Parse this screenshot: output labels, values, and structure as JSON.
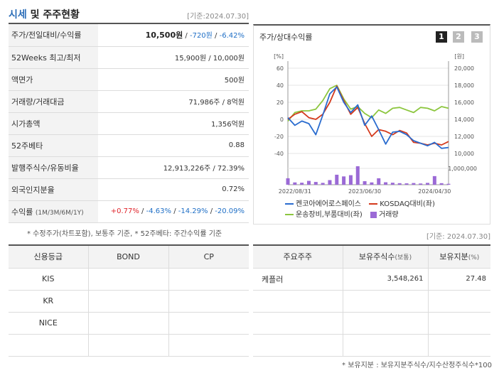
{
  "header": {
    "title_a": "시세",
    "title_b": " 및 주주현황",
    "date": "[기준:2024.07.30]"
  },
  "quote": {
    "rows": [
      {
        "label": "주가/전일대비/수익률"
      },
      {
        "label": "52Weeks 최고/최저",
        "value": "15,900원 / 10,000원"
      },
      {
        "label": "액면가",
        "value": "500원"
      },
      {
        "label": "거래량/거래대금",
        "value": "71,986주 / 8억원"
      },
      {
        "label": "시가총액",
        "value": "1,356억원"
      },
      {
        "label": "52주베타",
        "value": "0.88"
      },
      {
        "label": "발행주식수/유동비율",
        "value": "12,913,226주 / 72.39%"
      },
      {
        "label": "외국인지분율",
        "value": "0.72%"
      },
      {
        "label": "수익률",
        "sub": "(1M/3M/6M/1Y)"
      }
    ],
    "price": "10,500원",
    "sep": " / ",
    "change": "-720원",
    "change_pct": "-6.42%",
    "returns": {
      "m1": "+0.77%",
      "m3": "-4.63%",
      "m6": "-14.29%",
      "y1": "-20.09%",
      "sep": "/ "
    }
  },
  "notes": {
    "quote_note": "* 수정주가(차트포함), 보통주 기준, * 52주베타: 주간수익률 기준",
    "holder_date": "[기준: 2024.07.30]",
    "holder_note": "* 보유지분 : 보유지분주식수/지수산정주식수*100"
  },
  "chart": {
    "title": "주가/상대수익률",
    "pages": [
      "1",
      "2",
      "3"
    ],
    "left_unit": "[%]",
    "right_unit": "[원]",
    "left_ticks": [
      "60",
      "40",
      "20",
      "0",
      "-20",
      "-40"
    ],
    "right_ticks": [
      "20,000",
      "18,000",
      "16,000",
      "14,000",
      "12,000",
      "10,000"
    ],
    "vol_tick": "1,000,000",
    "x_labels": [
      "2022/08/31",
      "2023/06/30",
      "2024/04/30"
    ],
    "legend": {
      "s1": "켄코아에어로스페이스",
      "s2": "KOSDAQ대비(좌)",
      "s3": "운송장비,부품대비(좌)",
      "s4": "거래량"
    },
    "colors": {
      "s1": "#2a6ccf",
      "s2": "#d4391c",
      "s3": "#8cc63e",
      "vol": "#9b6ad6"
    }
  },
  "chart_data": {
    "type": "line",
    "x": [
      "2022/08",
      "2022/09",
      "2022/10",
      "2022/11",
      "2022/12",
      "2023/01",
      "2023/02",
      "2023/03",
      "2023/04",
      "2023/05",
      "2023/06",
      "2023/07",
      "2023/08",
      "2023/09",
      "2023/10",
      "2023/11",
      "2023/12",
      "2024/01",
      "2024/02",
      "2024/03",
      "2024/04",
      "2024/05",
      "2024/06",
      "2024/07"
    ],
    "series": [
      {
        "name": "켄코아에어로스페이스",
        "values": [
          2,
          -7,
          -2,
          -5,
          -18,
          5,
          30,
          38,
          20,
          8,
          17,
          -7,
          4,
          -12,
          -29,
          -15,
          -14,
          -18,
          -25,
          -28,
          -31,
          -27,
          -34,
          -33
        ]
      },
      {
        "name": "KOSDAQ대비(좌)",
        "values": [
          0,
          6,
          9,
          2,
          0,
          6,
          20,
          39,
          22,
          6,
          14,
          -5,
          -20,
          -12,
          -14,
          -18,
          -13,
          -16,
          -27,
          -28,
          -30,
          -28,
          -30,
          -26
        ]
      },
      {
        "name": "운송장비,부품대비(좌)",
        "values": [
          -2,
          8,
          10,
          10,
          12,
          22,
          36,
          40,
          24,
          12,
          15,
          7,
          2,
          11,
          7,
          13,
          14,
          11,
          8,
          14,
          13,
          10,
          15,
          13
        ]
      },
      {
        "name": "거래량",
        "values": [
          420000,
          150000,
          130000,
          250000,
          180000,
          120000,
          300000,
          650000,
          540000,
          620000,
          1200000,
          230000,
          150000,
          420000,
          160000,
          130000,
          100000,
          90000,
          110000,
          80000,
          120000,
          560000,
          100000,
          60000
        ]
      }
    ],
    "ylim": [
      -40,
      60
    ],
    "y2lim": [
      10000,
      20000
    ],
    "grid": true,
    "legend": "bottom"
  },
  "credit": {
    "headers": [
      "신용등급",
      "BOND",
      "CP"
    ],
    "rows": [
      [
        "KIS",
        "",
        ""
      ],
      [
        "KR",
        "",
        ""
      ],
      [
        "NICE",
        "",
        ""
      ],
      [
        "",
        "",
        ""
      ]
    ]
  },
  "holders": {
    "headers": [
      "주요주주",
      "보유주식수",
      "(보통)",
      "보유지분",
      "(%)"
    ],
    "rows": [
      [
        "케플러",
        "3,548,261",
        "27.48"
      ],
      [
        "",
        "",
        ""
      ],
      [
        "",
        "",
        ""
      ],
      [
        "",
        "",
        ""
      ]
    ]
  }
}
